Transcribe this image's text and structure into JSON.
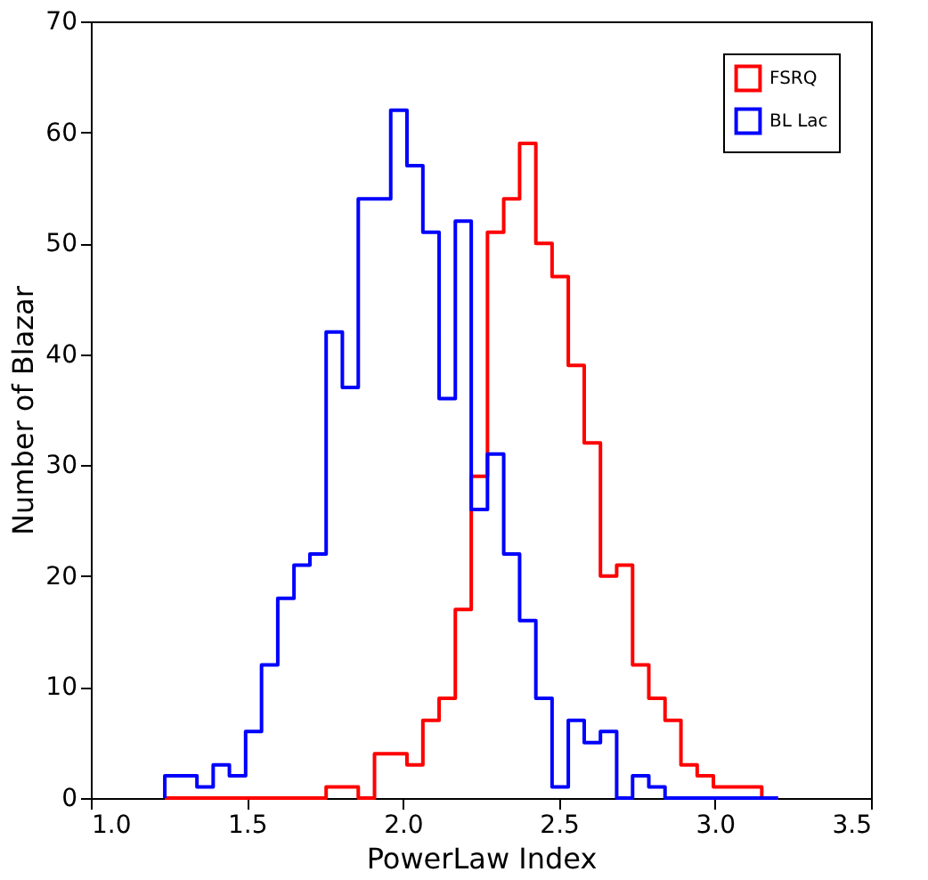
{
  "chart_data": {
    "type": "histogram",
    "xlabel": "PowerLaw Index",
    "ylabel": "Number of Blazar",
    "bins": [
      1.237,
      1.289,
      1.34,
      1.392,
      1.444,
      1.496,
      1.547,
      1.599,
      1.651,
      1.702,
      1.754,
      1.806,
      1.857,
      1.909,
      1.961,
      2.013,
      2.064,
      2.116,
      2.168,
      2.219,
      2.271,
      2.323,
      2.374,
      2.426,
      2.478,
      2.53,
      2.581,
      2.633,
      2.685,
      2.736,
      2.788,
      2.84,
      2.891,
      2.943,
      2.995,
      3.047,
      3.098,
      3.15,
      3.202
    ],
    "series": [
      {
        "name": "FSRQ",
        "color": "#ff0000",
        "values": [
          0,
          0,
          0,
          0,
          0,
          0,
          0,
          0,
          0,
          0,
          1,
          1,
          0,
          4,
          4,
          3,
          7,
          9,
          17,
          29,
          51,
          54,
          59,
          50,
          47,
          39,
          32,
          20,
          21,
          12,
          9,
          7,
          3,
          2,
          1,
          1,
          1,
          0
        ]
      },
      {
        "name": "BL Lac",
        "color": "#0000ff",
        "values": [
          2,
          2,
          1,
          3,
          2,
          6,
          12,
          18,
          21,
          22,
          42,
          37,
          54,
          54,
          62,
          57,
          51,
          36,
          52,
          26,
          31,
          22,
          16,
          9,
          1,
          7,
          5,
          6,
          0,
          2,
          1,
          0,
          0,
          0,
          0,
          0,
          0,
          0
        ]
      }
    ],
    "xlim": [
      1.0,
      3.5
    ],
    "xticks": [
      {
        "value": 1.0,
        "label": "1.0"
      },
      {
        "value": 1.5,
        "label": "1.5"
      },
      {
        "value": 2.0,
        "label": "2.0"
      },
      {
        "value": 2.5,
        "label": "2.5"
      },
      {
        "value": 3.0,
        "label": "3.0"
      },
      {
        "value": 3.5,
        "label": "3.5"
      }
    ],
    "ylim": [
      0,
      70
    ],
    "yticks": [
      0,
      10,
      20,
      30,
      40,
      50,
      60,
      70
    ],
    "grid": false,
    "legend": "top right"
  }
}
